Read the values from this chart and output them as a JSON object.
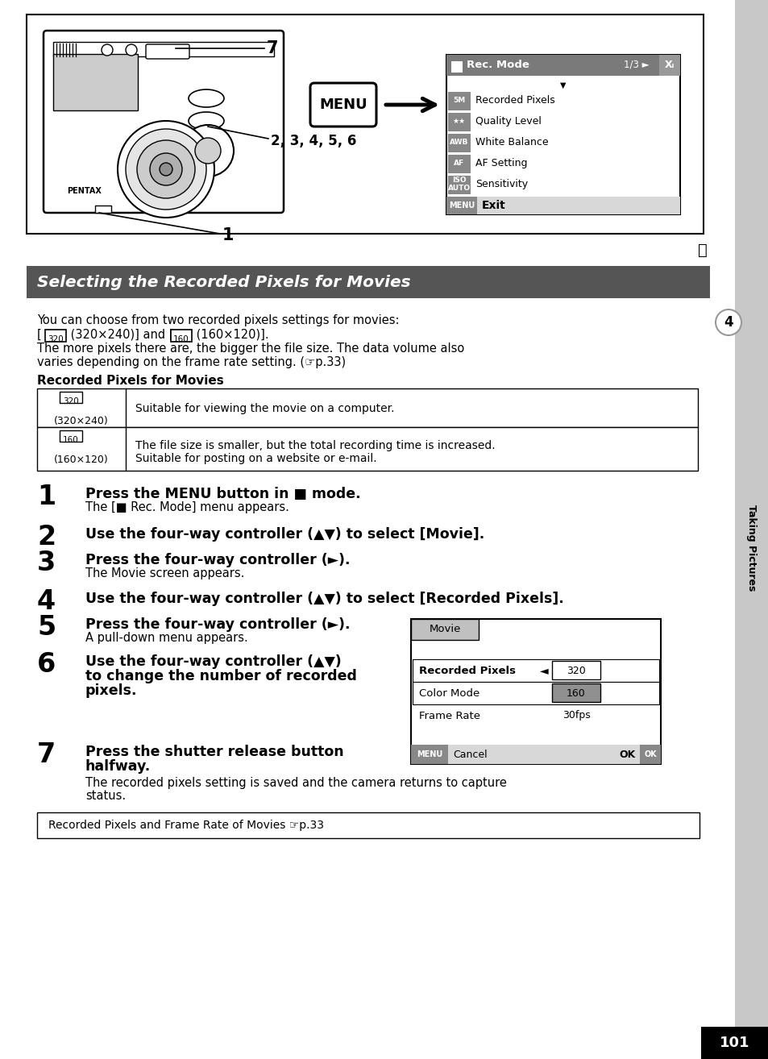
{
  "page_bg": "#ffffff",
  "sidebar_bg": "#d0d0d0",
  "tab_text": "Taking Pictures",
  "tab_circle_bg": "#ffffff",
  "tab_circle_border": "#888888",
  "tab_num": "4",
  "page_num": "101",
  "page_num_bg": "#000000",
  "section_title": "Selecting the Recorded Pixels for Movies",
  "section_title_bg": "#555555",
  "section_title_color": "#ffffff",
  "footer_note": "Recorded Pixels and Frame Rate of Movies ☞p.33",
  "intro_line1": "You can choose from two recorded pixels settings for movies:",
  "intro_line2a": "[",
  "intro_box1": "320",
  "intro_line2b": " (320×240)] and [",
  "intro_box2": "160",
  "intro_line2c": " (160×120)].",
  "intro_line3": "The more pixels there are, the bigger the file size. The data volume also",
  "intro_line4": "varies depending on the frame rate setting. (☞p.33)",
  "table_title": "Recorded Pixels for Movies",
  "tbl_icon1": "320",
  "tbl_label1": "(320×240)",
  "tbl_desc1": "Suitable for viewing the movie on a computer.",
  "tbl_icon2": "160",
  "tbl_label2": "(160×120)",
  "tbl_desc2a": "The file size is smaller, but the total recording time is increased.",
  "tbl_desc2b": "Suitable for posting on a website or e-mail.",
  "step1_bold": "Press the MENU button in ■ mode.",
  "step1_sub": "The [■ Rec. Mode] menu appears.",
  "step2_bold": "Use the four-way controller (▲▼) to select [Movie].",
  "step3_bold": "Press the four-way controller (►).",
  "step3_sub": "The Movie screen appears.",
  "step4_bold": "Use the four-way controller (▲▼) to select [Recorded Pixels].",
  "step5_bold": "Press the four-way controller (►).",
  "step5_sub": "A pull-down menu appears.",
  "step6_bold1": "Use the four-way controller (▲▼)",
  "step6_bold2": "to change the number of recorded",
  "step6_bold3": "pixels.",
  "step7_bold1": "Press the shutter release button",
  "step7_bold2": "halfway.",
  "step7_sub1": "The recorded pixels setting is saved and the camera returns to capture",
  "step7_sub2": "status.",
  "dlg_title": "Movie",
  "dlg_row1_lbl": "Recorded Pixels",
  "dlg_row2_lbl": "Color Mode",
  "dlg_row3_lbl": "Frame Rate",
  "dlg_val1": "320",
  "dlg_val2": "160",
  "dlg_val3": "30fps",
  "dlg_cancel": "Cancel",
  "dlg_ok": "OK",
  "menu_title": "Rec. Mode",
  "menu_items": [
    "Recorded Pixels",
    "Quality Level",
    "White Balance",
    "AF Setting",
    "Sensitivity"
  ],
  "menu_icons": [
    "5M",
    "★★",
    "AWB",
    "AF",
    "ISO\nAUTO"
  ],
  "menu_exit": "Exit",
  "menu_page": "1/3",
  "cam_label7": "7",
  "cam_label256": "2, 3, 4, 5, 6",
  "cam_label1": "1",
  "cam_pentax": "PENTAX",
  "menu_btn": "MENU"
}
